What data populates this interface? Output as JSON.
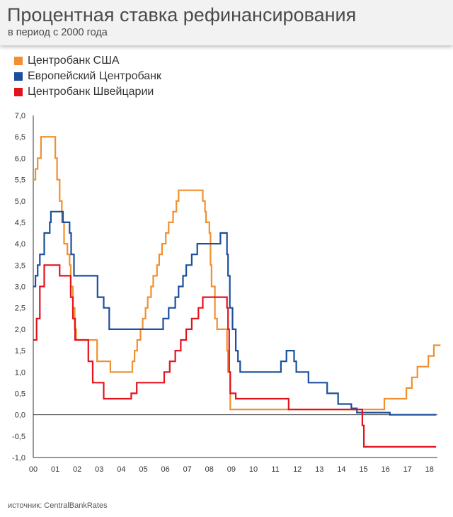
{
  "header": {
    "title": "Процентная ставка рефинансирования",
    "subtitle": "в период с 2000 года"
  },
  "source": "источник: CentralBankRates",
  "colors": {
    "background": "#ffffff",
    "header_bg": "#f2f2f2",
    "axis": "#333333",
    "grid": "#e6e6e6"
  },
  "chart_data": {
    "type": "line",
    "title": "Процентная ставка рефинансирования",
    "subtitle": "в период с 2000 года",
    "xlabel": "",
    "ylabel": "",
    "xlim": [
      2000,
      2018.5
    ],
    "ylim": [
      -1.0,
      7.0
    ],
    "x_ticks": [
      {
        "value": 2000,
        "label": "00"
      },
      {
        "value": 2001,
        "label": "01"
      },
      {
        "value": 2002,
        "label": "02"
      },
      {
        "value": 2003,
        "label": "03"
      },
      {
        "value": 2004,
        "label": "04"
      },
      {
        "value": 2005,
        "label": "05"
      },
      {
        "value": 2006,
        "label": "06"
      },
      {
        "value": 2007,
        "label": "07"
      },
      {
        "value": 2008,
        "label": "08"
      },
      {
        "value": 2009,
        "label": "09"
      },
      {
        "value": 2010,
        "label": "10"
      },
      {
        "value": 2011,
        "label": "11"
      },
      {
        "value": 2012,
        "label": "12"
      },
      {
        "value": 2013,
        "label": "13"
      },
      {
        "value": 2014,
        "label": "14"
      },
      {
        "value": 2015,
        "label": "15"
      },
      {
        "value": 2016,
        "label": "16"
      },
      {
        "value": 2017,
        "label": "17"
      },
      {
        "value": 2018,
        "label": "18"
      }
    ],
    "y_ticks": [
      {
        "value": 7.0,
        "label": "7,0"
      },
      {
        "value": 6.5,
        "label": "6,5"
      },
      {
        "value": 6.0,
        "label": "6,0"
      },
      {
        "value": 5.5,
        "label": "5,5"
      },
      {
        "value": 5.0,
        "label": "5,0"
      },
      {
        "value": 4.5,
        "label": "4,5"
      },
      {
        "value": 4.0,
        "label": "4,0"
      },
      {
        "value": 3.5,
        "label": "3,5"
      },
      {
        "value": 3.0,
        "label": "3,0"
      },
      {
        "value": 2.5,
        "label": "2,5"
      },
      {
        "value": 2.0,
        "label": "2,0"
      },
      {
        "value": 1.5,
        "label": "1,5"
      },
      {
        "value": 1.0,
        "label": "1,0"
      },
      {
        "value": 0.5,
        "label": "0,5"
      },
      {
        "value": 0.0,
        "label": "0,0"
      },
      {
        "value": -0.5,
        "label": "-0,5"
      },
      {
        "value": -1.0,
        "label": "-1,0"
      }
    ],
    "grid": false,
    "zero_line": true,
    "legend_position": "top-left",
    "step": true,
    "series": [
      {
        "name": "Центробанк США",
        "color": "#f0902f",
        "points": [
          [
            2000.0,
            5.5
          ],
          [
            2000.1,
            5.75
          ],
          [
            2000.2,
            6.0
          ],
          [
            2000.35,
            6.5
          ],
          [
            2001.0,
            6.0
          ],
          [
            2001.08,
            5.5
          ],
          [
            2001.2,
            5.0
          ],
          [
            2001.3,
            4.5
          ],
          [
            2001.4,
            4.0
          ],
          [
            2001.55,
            3.75
          ],
          [
            2001.65,
            3.5
          ],
          [
            2001.7,
            3.0
          ],
          [
            2001.8,
            2.5
          ],
          [
            2001.88,
            2.0
          ],
          [
            2001.95,
            1.75
          ],
          [
            2002.9,
            1.25
          ],
          [
            2003.5,
            1.0
          ],
          [
            2004.5,
            1.25
          ],
          [
            2004.6,
            1.5
          ],
          [
            2004.72,
            1.75
          ],
          [
            2004.87,
            2.0
          ],
          [
            2004.97,
            2.25
          ],
          [
            2005.1,
            2.5
          ],
          [
            2005.2,
            2.75
          ],
          [
            2005.35,
            3.0
          ],
          [
            2005.45,
            3.25
          ],
          [
            2005.62,
            3.5
          ],
          [
            2005.72,
            3.75
          ],
          [
            2005.85,
            4.0
          ],
          [
            2006.02,
            4.25
          ],
          [
            2006.15,
            4.5
          ],
          [
            2006.35,
            4.75
          ],
          [
            2006.5,
            5.0
          ],
          [
            2006.6,
            5.25
          ],
          [
            2007.7,
            5.0
          ],
          [
            2007.8,
            4.75
          ],
          [
            2007.85,
            4.5
          ],
          [
            2008.0,
            4.25
          ],
          [
            2008.05,
            3.5
          ],
          [
            2008.1,
            3.0
          ],
          [
            2008.25,
            2.25
          ],
          [
            2008.35,
            2.0
          ],
          [
            2008.8,
            1.5
          ],
          [
            2008.85,
            1.0
          ],
          [
            2008.95,
            0.125
          ],
          [
            2015.95,
            0.375
          ],
          [
            2016.95,
            0.625
          ],
          [
            2017.2,
            0.875
          ],
          [
            2017.45,
            1.125
          ],
          [
            2017.95,
            1.375
          ],
          [
            2018.2,
            1.625
          ],
          [
            2018.5,
            1.625
          ]
        ]
      },
      {
        "name": "Европейский Центробанк",
        "color": "#1b4f9c",
        "points": [
          [
            2000.0,
            3.0
          ],
          [
            2000.1,
            3.25
          ],
          [
            2000.2,
            3.5
          ],
          [
            2000.3,
            3.75
          ],
          [
            2000.5,
            4.25
          ],
          [
            2000.75,
            4.5
          ],
          [
            2000.8,
            4.75
          ],
          [
            2001.35,
            4.5
          ],
          [
            2001.65,
            4.25
          ],
          [
            2001.72,
            3.75
          ],
          [
            2001.85,
            3.25
          ],
          [
            2002.92,
            2.75
          ],
          [
            2003.2,
            2.5
          ],
          [
            2003.45,
            2.0
          ],
          [
            2005.9,
            2.25
          ],
          [
            2006.15,
            2.5
          ],
          [
            2006.45,
            2.75
          ],
          [
            2006.6,
            3.0
          ],
          [
            2006.8,
            3.25
          ],
          [
            2006.95,
            3.5
          ],
          [
            2007.2,
            3.75
          ],
          [
            2007.45,
            4.0
          ],
          [
            2008.5,
            4.25
          ],
          [
            2008.8,
            3.75
          ],
          [
            2008.85,
            3.25
          ],
          [
            2008.93,
            2.5
          ],
          [
            2009.05,
            2.0
          ],
          [
            2009.2,
            1.5
          ],
          [
            2009.3,
            1.25
          ],
          [
            2009.4,
            1.0
          ],
          [
            2011.25,
            1.25
          ],
          [
            2011.5,
            1.5
          ],
          [
            2011.85,
            1.25
          ],
          [
            2011.95,
            1.0
          ],
          [
            2012.5,
            0.75
          ],
          [
            2013.35,
            0.5
          ],
          [
            2013.85,
            0.25
          ],
          [
            2014.45,
            0.15
          ],
          [
            2014.7,
            0.05
          ],
          [
            2016.2,
            0.0
          ],
          [
            2018.3,
            0.0
          ]
        ]
      },
      {
        "name": "Центробанк Швейцарии",
        "color": "#e3131d",
        "points": [
          [
            2000.0,
            1.75
          ],
          [
            2000.15,
            2.25
          ],
          [
            2000.3,
            3.0
          ],
          [
            2000.5,
            3.5
          ],
          [
            2001.2,
            3.25
          ],
          [
            2001.7,
            2.75
          ],
          [
            2001.8,
            2.25
          ],
          [
            2001.9,
            1.75
          ],
          [
            2002.5,
            1.25
          ],
          [
            2002.7,
            0.75
          ],
          [
            2003.2,
            0.375
          ],
          [
            2004.45,
            0.5
          ],
          [
            2004.7,
            0.75
          ],
          [
            2005.95,
            1.0
          ],
          [
            2006.2,
            1.25
          ],
          [
            2006.45,
            1.5
          ],
          [
            2006.7,
            1.75
          ],
          [
            2006.95,
            2.0
          ],
          [
            2007.2,
            2.25
          ],
          [
            2007.5,
            2.5
          ],
          [
            2007.7,
            2.75
          ],
          [
            2008.8,
            2.5
          ],
          [
            2008.85,
            2.0
          ],
          [
            2008.9,
            1.0
          ],
          [
            2008.95,
            0.5
          ],
          [
            2009.2,
            0.375
          ],
          [
            2011.6,
            0.125
          ],
          [
            2014.95,
            -0.25
          ],
          [
            2015.02,
            -0.75
          ],
          [
            2018.3,
            -0.75
          ]
        ]
      }
    ]
  }
}
